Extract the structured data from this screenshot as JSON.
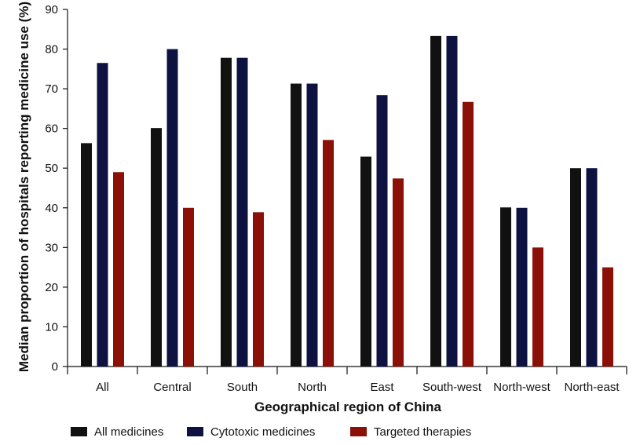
{
  "chart_data": {
    "type": "bar",
    "title": "",
    "xlabel": "Geographical region of China",
    "ylabel": "Median proportion of hospitals reporting medicine use (%)",
    "ylim": [
      0,
      90
    ],
    "yticks": [
      0,
      10,
      20,
      30,
      40,
      50,
      60,
      70,
      80,
      90
    ],
    "categories": [
      "All",
      "Central",
      "South",
      "North",
      "East",
      "South-west",
      "North-west",
      "North-east"
    ],
    "series": [
      {
        "name": "All medicines",
        "color": "#111111",
        "values": [
          56.3,
          60.1,
          77.8,
          71.3,
          52.9,
          83.3,
          40.1,
          50.0
        ]
      },
      {
        "name": "Cytotoxic medicines",
        "color": "#0d1240",
        "values": [
          76.5,
          80.0,
          77.8,
          71.3,
          68.4,
          83.3,
          40.0,
          50.0
        ]
      },
      {
        "name": "Targeted therapies",
        "color": "#8b1008",
        "values": [
          49.0,
          40.0,
          38.9,
          57.1,
          47.4,
          66.7,
          30.0,
          25.0
        ]
      }
    ],
    "legend_position": "bottom-left",
    "grid": false
  }
}
